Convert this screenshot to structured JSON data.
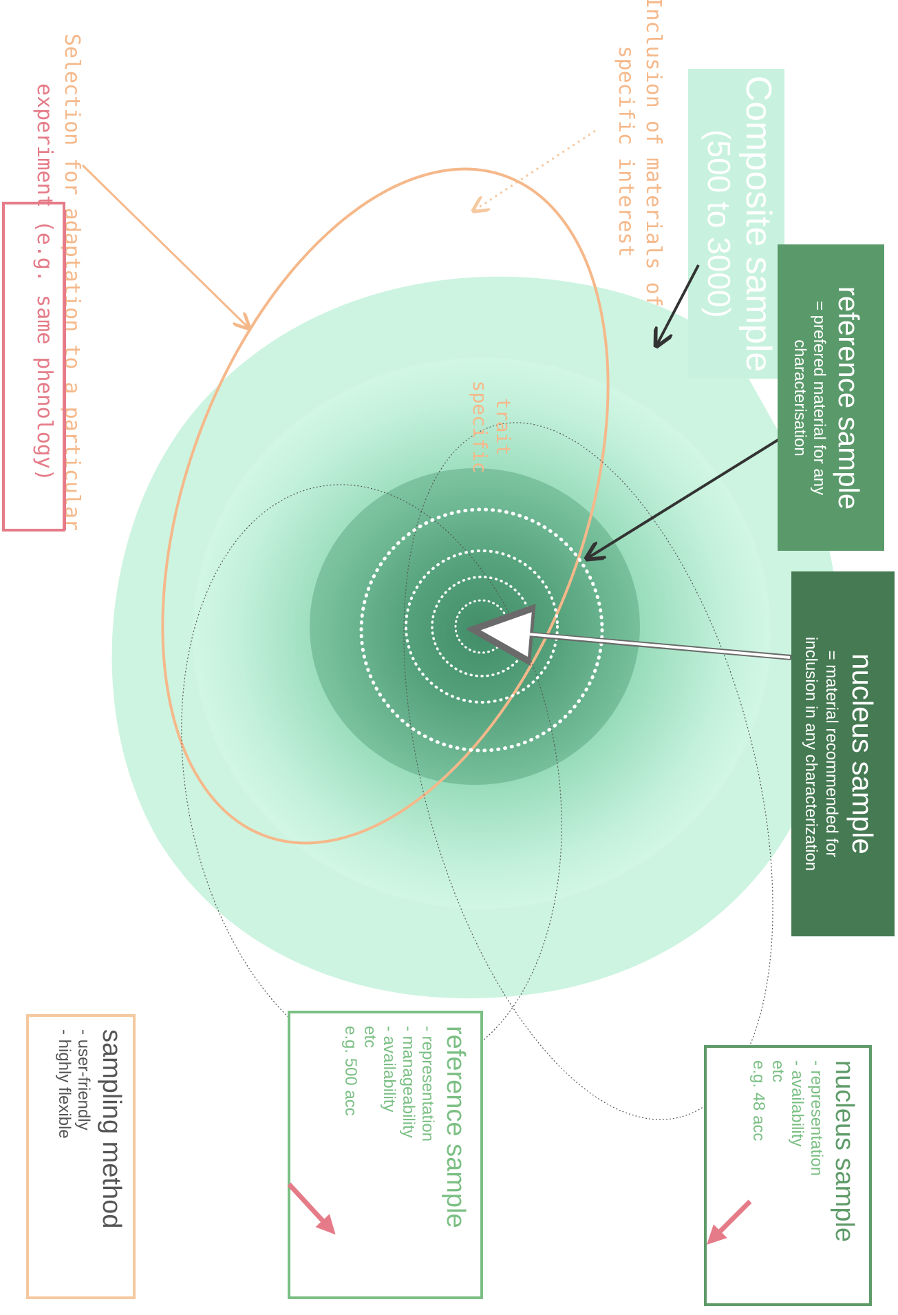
{
  "composite": {
    "title": "Composite sample",
    "subtitle": "(500 to 3000)"
  },
  "reference_callout": {
    "title": "reference sample",
    "line1": "= prefered material for any",
    "line2": "characterisation"
  },
  "nucleus_callout": {
    "title": "nucleus sample",
    "line1": "= material recommended for",
    "line2": "inclusion in any characterization"
  },
  "annotations": {
    "inclusion_line1": "Inclusion of materials of",
    "inclusion_line2": "specific interest",
    "selection_line1": "Selection for adaptation to a particular",
    "selection_line2": "experiment (e.g. same phenology)",
    "trait_line1": "trait",
    "trait_line2": "specific"
  },
  "nucleus_box": {
    "title": "nucleus sample",
    "items": [
      "- representation",
      "- availability",
      "etc",
      "e.g. 48 acc"
    ]
  },
  "reference_box": {
    "title": "reference sample",
    "items": [
      "- representation",
      "- manageability",
      "- availability",
      "etc",
      "e.g. 500 acc"
    ]
  },
  "method_box": {
    "title": "sampling method",
    "items": [
      "- user-friendly",
      "- highly flexible"
    ]
  },
  "colors": {
    "mint": "#c8f2df",
    "core_green": "#3a8a62",
    "callout_green": "#5a9a6a",
    "callout_dark": "#457a52",
    "orange": "#f5b88a",
    "pink": "#e57b88",
    "box_green": "#7bbf84",
    "box_dark_green": "#5f9b69",
    "box_orange": "#f5c9a0"
  }
}
